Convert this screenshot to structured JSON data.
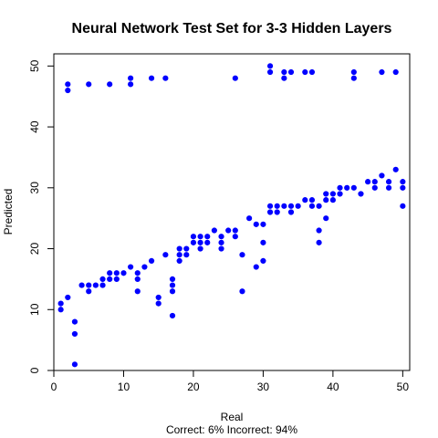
{
  "chart_data": {
    "type": "scatter",
    "title": "Neural Network Test Set for 3-3 Hidden Layers",
    "xlabel": "Real",
    "ylabel": "Predicted",
    "subtitle": "Correct: 6% Incorrect: 94%",
    "xlim": [
      0,
      51
    ],
    "ylim": [
      0,
      52
    ],
    "xticks": [
      0,
      10,
      20,
      30,
      40,
      50
    ],
    "yticks": [
      0,
      10,
      20,
      30,
      40,
      50
    ],
    "point_color": "#0000ff",
    "points": [
      [
        1,
        10
      ],
      [
        1,
        11
      ],
      [
        2,
        12
      ],
      [
        2,
        46
      ],
      [
        2,
        47
      ],
      [
        3,
        1
      ],
      [
        3,
        6
      ],
      [
        3,
        8
      ],
      [
        4,
        14
      ],
      [
        5,
        13
      ],
      [
        5,
        14
      ],
      [
        5,
        47
      ],
      [
        6,
        14
      ],
      [
        7,
        14
      ],
      [
        7,
        15
      ],
      [
        8,
        15
      ],
      [
        8,
        16
      ],
      [
        8,
        47
      ],
      [
        9,
        15
      ],
      [
        9,
        16
      ],
      [
        10,
        16
      ],
      [
        11,
        17
      ],
      [
        11,
        47
      ],
      [
        11,
        48
      ],
      [
        12,
        13
      ],
      [
        12,
        15
      ],
      [
        12,
        16
      ],
      [
        13,
        17
      ],
      [
        14,
        18
      ],
      [
        14,
        48
      ],
      [
        15,
        11
      ],
      [
        15,
        12
      ],
      [
        16,
        19
      ],
      [
        16,
        48
      ],
      [
        17,
        9
      ],
      [
        17,
        13
      ],
      [
        17,
        14
      ],
      [
        17,
        15
      ],
      [
        18,
        18
      ],
      [
        18,
        19
      ],
      [
        18,
        20
      ],
      [
        19,
        19
      ],
      [
        19,
        20
      ],
      [
        20,
        21
      ],
      [
        20,
        22
      ],
      [
        21,
        20
      ],
      [
        21,
        21
      ],
      [
        21,
        22
      ],
      [
        22,
        21
      ],
      [
        22,
        22
      ],
      [
        23,
        23
      ],
      [
        24,
        20
      ],
      [
        24,
        21
      ],
      [
        24,
        22
      ],
      [
        25,
        23
      ],
      [
        26,
        22
      ],
      [
        26,
        23
      ],
      [
        26,
        48
      ],
      [
        27,
        13
      ],
      [
        27,
        19
      ],
      [
        28,
        25
      ],
      [
        29,
        17
      ],
      [
        29,
        24
      ],
      [
        30,
        18
      ],
      [
        30,
        21
      ],
      [
        30,
        24
      ],
      [
        31,
        26
      ],
      [
        31,
        27
      ],
      [
        31,
        49
      ],
      [
        31,
        50
      ],
      [
        32,
        26
      ],
      [
        32,
        27
      ],
      [
        33,
        27
      ],
      [
        33,
        48
      ],
      [
        33,
        49
      ],
      [
        34,
        26
      ],
      [
        34,
        27
      ],
      [
        34,
        49
      ],
      [
        35,
        27
      ],
      [
        36,
        28
      ],
      [
        36,
        49
      ],
      [
        37,
        27
      ],
      [
        37,
        28
      ],
      [
        37,
        49
      ],
      [
        38,
        21
      ],
      [
        38,
        23
      ],
      [
        38,
        27
      ],
      [
        39,
        25
      ],
      [
        39,
        28
      ],
      [
        39,
        29
      ],
      [
        40,
        28
      ],
      [
        40,
        29
      ],
      [
        41,
        29
      ],
      [
        41,
        30
      ],
      [
        42,
        30
      ],
      [
        43,
        30
      ],
      [
        43,
        48
      ],
      [
        43,
        49
      ],
      [
        44,
        29
      ],
      [
        45,
        31
      ],
      [
        46,
        30
      ],
      [
        46,
        31
      ],
      [
        47,
        32
      ],
      [
        47,
        49
      ],
      [
        48,
        30
      ],
      [
        48,
        31
      ],
      [
        49,
        33
      ],
      [
        49,
        49
      ],
      [
        50,
        27
      ],
      [
        50,
        30
      ],
      [
        50,
        31
      ]
    ]
  }
}
